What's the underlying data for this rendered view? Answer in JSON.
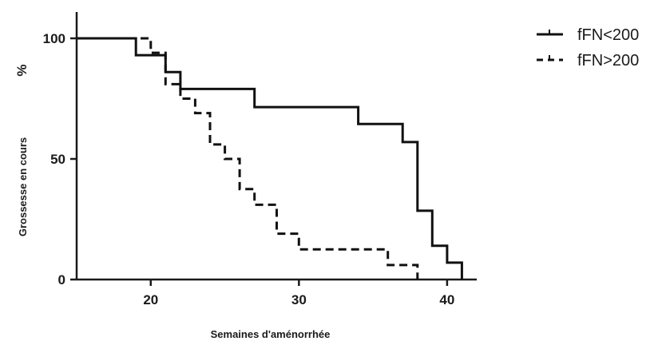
{
  "chart_data": {
    "type": "line",
    "step": true,
    "title": "",
    "xlabel": "Semaines d'aménorrhée",
    "ylabel": "Grossesse en cours",
    "ylabel_unit": "%",
    "xlim": [
      15,
      42
    ],
    "ylim": [
      0,
      100
    ],
    "xticks": [
      20,
      30,
      40
    ],
    "yticks": [
      0,
      50,
      100
    ],
    "legend_position": "top-right",
    "grid": false,
    "series": [
      {
        "name": "fFN<200",
        "style": "solid",
        "color": "#111111",
        "points": [
          [
            15,
            100
          ],
          [
            19,
            100
          ],
          [
            19,
            93
          ],
          [
            21,
            93
          ],
          [
            21,
            86
          ],
          [
            22,
            86
          ],
          [
            22,
            79
          ],
          [
            27,
            79
          ],
          [
            27,
            71.5
          ],
          [
            34,
            71.5
          ],
          [
            34,
            64.5
          ],
          [
            37,
            64.5
          ],
          [
            37,
            57
          ],
          [
            38,
            57
          ],
          [
            38,
            28.5
          ],
          [
            39,
            28.5
          ],
          [
            39,
            14
          ],
          [
            40,
            14
          ],
          [
            40,
            7
          ],
          [
            41,
            7
          ],
          [
            41,
            0
          ]
        ]
      },
      {
        "name": "fFN>200",
        "style": "dashed",
        "color": "#111111",
        "points": [
          [
            15,
            100
          ],
          [
            20,
            100
          ],
          [
            20,
            94
          ],
          [
            21,
            94
          ],
          [
            21,
            81
          ],
          [
            22,
            81
          ],
          [
            22,
            75
          ],
          [
            23,
            75
          ],
          [
            23,
            69
          ],
          [
            24,
            69
          ],
          [
            24,
            56
          ],
          [
            25,
            56
          ],
          [
            25,
            50
          ],
          [
            26,
            50
          ],
          [
            26,
            37.5
          ],
          [
            27,
            37.5
          ],
          [
            27,
            31
          ],
          [
            28.5,
            31
          ],
          [
            28.5,
            19
          ],
          [
            30,
            19
          ],
          [
            30,
            12.5
          ],
          [
            36,
            12.5
          ],
          [
            36,
            6
          ],
          [
            38,
            6
          ],
          [
            38,
            0
          ]
        ]
      }
    ]
  }
}
